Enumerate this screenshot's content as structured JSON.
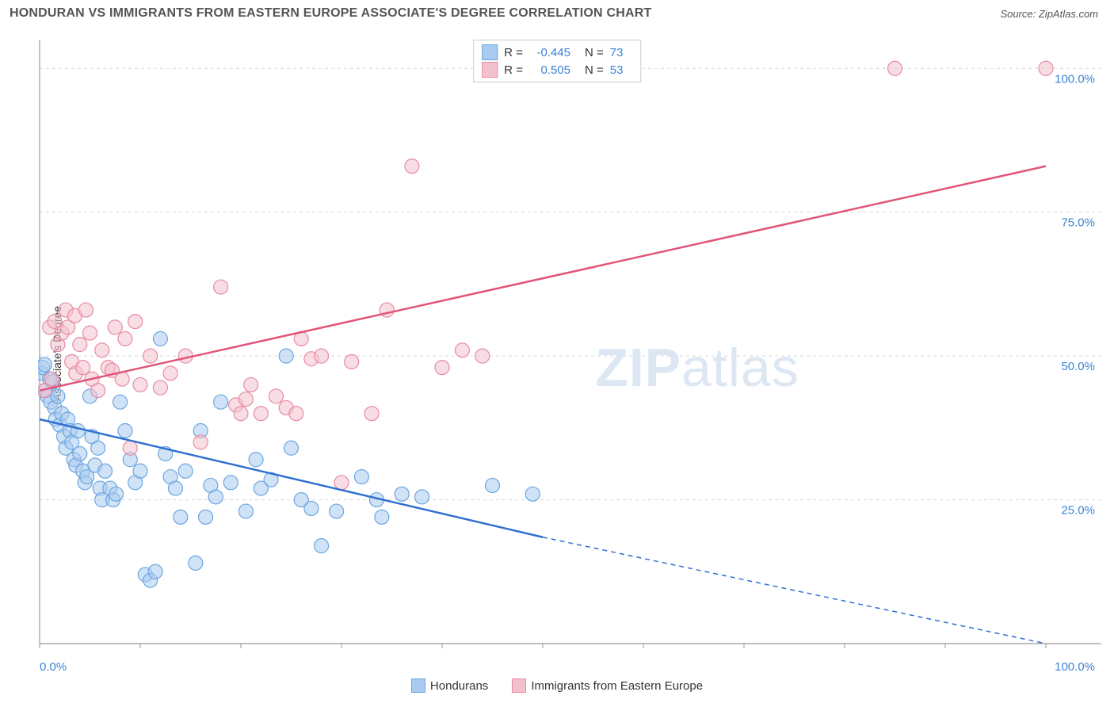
{
  "header": {
    "title": "HONDURAN VS IMMIGRANTS FROM EASTERN EUROPE ASSOCIATE'S DEGREE CORRELATION CHART",
    "source": "Source: ZipAtlas.com"
  },
  "chart": {
    "type": "scatter",
    "ylabel": "Associate's Degree",
    "xlim": [
      0,
      100
    ],
    "ylim": [
      0,
      105
    ],
    "xticks": [
      0,
      10,
      20,
      30,
      40,
      50,
      60,
      70,
      80,
      90,
      100
    ],
    "yticks": [
      25,
      50,
      75,
      100
    ],
    "ytick_labels": [
      "25.0%",
      "50.0%",
      "75.0%",
      "100.0%"
    ],
    "grid_color": "#d8d8d8",
    "axis_color": "#999999",
    "background_color": "#ffffff",
    "marker_radius": 9,
    "marker_opacity": 0.55,
    "watermark": "ZIPatlas",
    "series": [
      {
        "name": "Hondurans",
        "color_fill": "#a9cbef",
        "color_stroke": "#6ca6e0",
        "trend_color": "#2f6fd0",
        "R": "-0.445",
        "N": "73",
        "points": [
          [
            0.2,
            47
          ],
          [
            0.3,
            48
          ],
          [
            0.5,
            48.5
          ],
          [
            0.6,
            44
          ],
          [
            0.8,
            43
          ],
          [
            1.0,
            46
          ],
          [
            1.1,
            42
          ],
          [
            1.3,
            45.5
          ],
          [
            1.5,
            41
          ],
          [
            1.6,
            39
          ],
          [
            1.8,
            43
          ],
          [
            2.0,
            38
          ],
          [
            2.2,
            40
          ],
          [
            2.4,
            36
          ],
          [
            2.6,
            34
          ],
          [
            2.8,
            39
          ],
          [
            3.0,
            37
          ],
          [
            3.2,
            35
          ],
          [
            3.4,
            32
          ],
          [
            3.6,
            31
          ],
          [
            3.8,
            37
          ],
          [
            4.0,
            33
          ],
          [
            4.3,
            30
          ],
          [
            4.5,
            28
          ],
          [
            4.7,
            29
          ],
          [
            5.0,
            43
          ],
          [
            5.2,
            36
          ],
          [
            5.5,
            31
          ],
          [
            5.8,
            34
          ],
          [
            6.0,
            27
          ],
          [
            6.2,
            25
          ],
          [
            6.5,
            30
          ],
          [
            7.0,
            27
          ],
          [
            7.3,
            25
          ],
          [
            7.6,
            26
          ],
          [
            8.0,
            42
          ],
          [
            8.5,
            37
          ],
          [
            9.0,
            32
          ],
          [
            9.5,
            28
          ],
          [
            10.0,
            30
          ],
          [
            10.5,
            12
          ],
          [
            11.0,
            11
          ],
          [
            11.5,
            12.5
          ],
          [
            12.0,
            53
          ],
          [
            12.5,
            33
          ],
          [
            13.0,
            29
          ],
          [
            13.5,
            27
          ],
          [
            14.0,
            22
          ],
          [
            14.5,
            30
          ],
          [
            15.5,
            14
          ],
          [
            16.0,
            37
          ],
          [
            16.5,
            22
          ],
          [
            17.0,
            27.5
          ],
          [
            17.5,
            25.5
          ],
          [
            18.0,
            42
          ],
          [
            19.0,
            28
          ],
          [
            20.5,
            23
          ],
          [
            21.5,
            32
          ],
          [
            22.0,
            27
          ],
          [
            23.0,
            28.5
          ],
          [
            24.5,
            50
          ],
          [
            25.0,
            34
          ],
          [
            26.0,
            25
          ],
          [
            27.0,
            23.5
          ],
          [
            28.0,
            17
          ],
          [
            29.5,
            23
          ],
          [
            32.0,
            29
          ],
          [
            33.5,
            25
          ],
          [
            34.0,
            22
          ],
          [
            36.0,
            26
          ],
          [
            38.0,
            25.5
          ],
          [
            45.0,
            27.5
          ],
          [
            49.0,
            26
          ]
        ],
        "trend": {
          "x1": 0,
          "y1": 39,
          "x2": 50,
          "y2": 18.5,
          "dash_to_x": 100,
          "dash_to_y": -2
        }
      },
      {
        "name": "Immigrants from Eastern Europe",
        "color_fill": "#f3c1cd",
        "color_stroke": "#e88ba4",
        "trend_color": "#e15578",
        "R": "0.505",
        "N": "53",
        "points": [
          [
            0.5,
            44
          ],
          [
            1.0,
            55
          ],
          [
            1.2,
            46
          ],
          [
            1.5,
            56
          ],
          [
            1.8,
            52
          ],
          [
            2.2,
            54
          ],
          [
            2.6,
            58
          ],
          [
            2.8,
            55
          ],
          [
            3.2,
            49
          ],
          [
            3.5,
            57
          ],
          [
            3.6,
            47
          ],
          [
            4.0,
            52
          ],
          [
            4.3,
            48
          ],
          [
            4.6,
            58
          ],
          [
            5.0,
            54
          ],
          [
            5.2,
            46
          ],
          [
            5.8,
            44
          ],
          [
            6.2,
            51
          ],
          [
            6.8,
            48
          ],
          [
            7.2,
            47.5
          ],
          [
            7.5,
            55
          ],
          [
            8.2,
            46
          ],
          [
            8.5,
            53
          ],
          [
            9.0,
            34
          ],
          [
            9.5,
            56
          ],
          [
            10.0,
            45
          ],
          [
            11.0,
            50
          ],
          [
            12.0,
            44.5
          ],
          [
            13.0,
            47
          ],
          [
            14.5,
            50
          ],
          [
            16.0,
            35
          ],
          [
            18.0,
            62
          ],
          [
            19.5,
            41.5
          ],
          [
            20.0,
            40
          ],
          [
            20.5,
            42.5
          ],
          [
            21.0,
            45
          ],
          [
            22.0,
            40
          ],
          [
            23.5,
            43
          ],
          [
            24.5,
            41
          ],
          [
            25.5,
            40
          ],
          [
            26.0,
            53
          ],
          [
            27.0,
            49.5
          ],
          [
            28.0,
            50
          ],
          [
            30.0,
            28
          ],
          [
            31.0,
            49
          ],
          [
            33.0,
            40
          ],
          [
            34.5,
            58
          ],
          [
            37.0,
            83
          ],
          [
            40.0,
            48
          ],
          [
            42.0,
            51
          ],
          [
            44.0,
            50
          ],
          [
            85.0,
            100
          ],
          [
            100.0,
            100
          ]
        ],
        "trend": {
          "x1": 0,
          "y1": 44,
          "x2": 100,
          "y2": 83
        }
      }
    ],
    "corner_labels": {
      "bl": "0.0%",
      "br": "100.0%"
    }
  },
  "legend_bottom": [
    {
      "label": "Hondurans",
      "fill": "#a9cbef",
      "stroke": "#6ca6e0"
    },
    {
      "label": "Immigrants from Eastern Europe",
      "fill": "#f3c1cd",
      "stroke": "#e88ba4"
    }
  ]
}
